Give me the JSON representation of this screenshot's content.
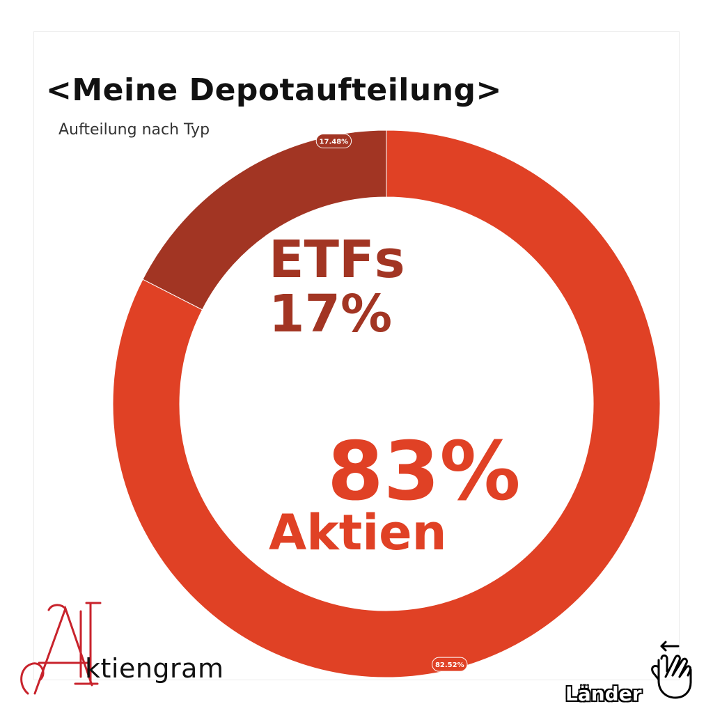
{
  "chart_data": {
    "type": "pie",
    "style": "donut",
    "title": "<Meine Depotaufteilung>",
    "subtitle": "Aufteilung nach Typ",
    "series": [
      {
        "values": [
          82.52,
          17.48
        ],
        "data_labels": [
          "82.52%",
          "17.48%"
        ]
      }
    ],
    "categories": [
      "Aktien",
      "ETFs"
    ],
    "colors": [
      "#e04125",
      "#a23523"
    ],
    "start_angle_deg": 0,
    "direction": "clockwise",
    "legend": "none",
    "annotations": {
      "etf_name": "ETFs",
      "etf_percent": "17%",
      "aktien_percent": "83%",
      "aktien_name": "Aktien"
    }
  },
  "branding": {
    "logo_text": "ktiengram",
    "logo_icon": "aktiengram-monogram-icon",
    "logo_color": "#c8232c"
  },
  "navigation": {
    "swipe_label": "Länder",
    "swipe_icon": "swipe-hand-icon"
  }
}
